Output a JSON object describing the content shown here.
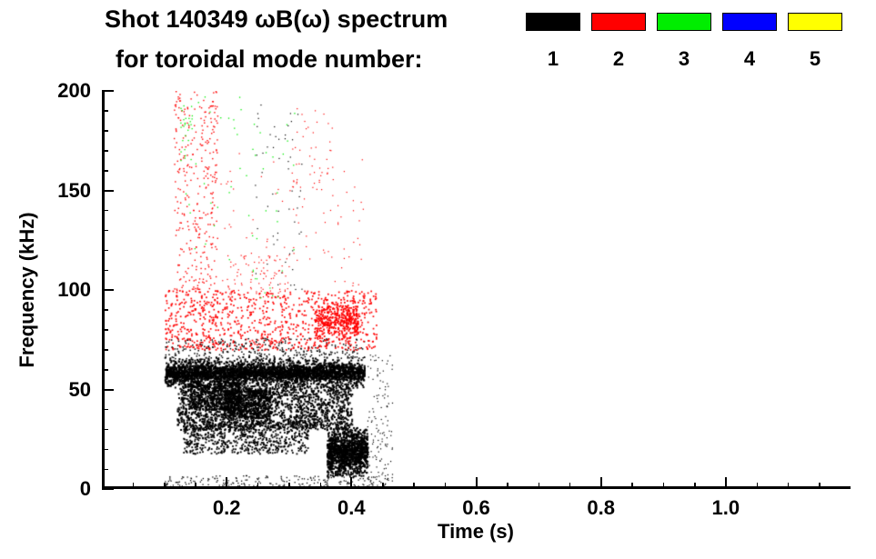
{
  "header": {
    "line1": "Shot 140349 ωB(ω) spectrum",
    "line2": "for toroidal mode number:"
  },
  "chart_data": {
    "type": "scatter",
    "title": "Shot 140349 ωB(ω) spectrum for toroidal mode number",
    "xlabel": "Time (s)",
    "ylabel": "Frequency (kHz)",
    "xlim": [
      0,
      1.2
    ],
    "ylim": [
      0,
      200
    ],
    "x_ticks": [
      {
        "v": 0.2,
        "label": "0.2"
      },
      {
        "v": 0.4,
        "label": "0.4"
      },
      {
        "v": 0.6,
        "label": "0.6"
      },
      {
        "v": 0.8,
        "label": "0.8"
      },
      {
        "v": 1.0,
        "label": "1.0"
      }
    ],
    "y_ticks": [
      {
        "v": 0,
        "label": "0"
      },
      {
        "v": 50,
        "label": "50"
      },
      {
        "v": 100,
        "label": "100"
      },
      {
        "v": 150,
        "label": "150"
      },
      {
        "v": 200,
        "label": "200"
      }
    ],
    "x_minor_step": 0.05,
    "y_minor_step": 10,
    "grid": false,
    "legend": {
      "position": "top-right",
      "entries": [
        {
          "label": "1",
          "color": "#000000"
        },
        {
          "label": "2",
          "color": "#ff0000"
        },
        {
          "label": "3",
          "color": "#00ee00"
        },
        {
          "label": "4",
          "color": "#0000ff"
        },
        {
          "label": "5",
          "color": "#ffff00"
        }
      ]
    },
    "series": [
      {
        "name": "toroidal mode n=1",
        "legend_label": "1",
        "color": "#000000",
        "clusters": [
          {
            "t": [
              0.1,
              0.42
            ],
            "f": [
              50,
              67
            ],
            "n": 2200,
            "size": 2,
            "gauss": true
          },
          {
            "t": [
              0.1,
              0.42
            ],
            "f": [
              55,
              63
            ],
            "n": 1200,
            "size": 2,
            "gauss": true
          },
          {
            "t": [
              0.12,
              0.4
            ],
            "f": [
              30,
              52
            ],
            "n": 1500,
            "size": 2
          },
          {
            "t": [
              0.13,
              0.33
            ],
            "f": [
              18,
              35
            ],
            "n": 700,
            "size": 1.8
          },
          {
            "t": [
              0.36,
              0.425
            ],
            "f": [
              6,
              32
            ],
            "n": 1300,
            "size": 2,
            "gauss": true
          },
          {
            "t": [
              0.1,
              0.46
            ],
            "f": [
              0,
              7
            ],
            "n": 260,
            "size": 1.3
          },
          {
            "t": [
              0.24,
              0.32
            ],
            "f": [
              100,
              195
            ],
            "n": 55,
            "size": 1.2
          },
          {
            "t": [
              0.1,
              0.42
            ],
            "f": [
              65,
              76
            ],
            "n": 320,
            "size": 1.5
          },
          {
            "t": [
              0.425,
              0.465
            ],
            "f": [
              0,
              68
            ],
            "n": 130,
            "size": 1.2
          },
          {
            "t": [
              0.195,
              0.27
            ],
            "f": [
              36,
              50
            ],
            "n": 600,
            "size": 2
          },
          {
            "t": [
              0.14,
              0.22
            ],
            "f": [
              40,
              55
            ],
            "n": 500,
            "size": 2
          }
        ]
      },
      {
        "name": "toroidal mode n=2",
        "legend_label": "2",
        "color": "#ff0000",
        "clusters": [
          {
            "t": [
              0.1,
              0.44
            ],
            "f": [
              70,
              100
            ],
            "n": 850,
            "size": 1.7
          },
          {
            "t": [
              0.115,
              0.185
            ],
            "f": [
              100,
              200
            ],
            "n": 320,
            "size": 1.4
          },
          {
            "t": [
              0.19,
              0.42
            ],
            "f": [
              100,
              170
            ],
            "n": 90,
            "size": 1.2
          },
          {
            "t": [
              0.34,
              0.41
            ],
            "f": [
              74,
              96
            ],
            "n": 380,
            "size": 1.8,
            "gauss": true
          },
          {
            "t": [
              0.3,
              0.37
            ],
            "f": [
              150,
              192
            ],
            "n": 45,
            "size": 1.2
          },
          {
            "t": [
              0.2,
              0.3
            ],
            "f": [
              96,
              118
            ],
            "n": 80,
            "size": 1.2
          }
        ]
      },
      {
        "name": "toroidal mode n=3",
        "legend_label": "3",
        "color": "#00ee00",
        "clusters": [
          {
            "t": [
              0.12,
              0.31
            ],
            "f": [
              115,
              200
            ],
            "n": 48,
            "size": 1.3
          },
          {
            "t": [
              0.24,
              0.3
            ],
            "f": [
              95,
              112
            ],
            "n": 10,
            "size": 1.2
          },
          {
            "t": [
              0.125,
              0.145
            ],
            "f": [
              165,
              195
            ],
            "n": 25,
            "size": 1.3
          }
        ]
      },
      {
        "name": "toroidal mode n=4",
        "legend_label": "4",
        "color": "#0000ff",
        "clusters": []
      },
      {
        "name": "toroidal mode n=5",
        "legend_label": "5",
        "color": "#ffff00",
        "clusters": []
      }
    ]
  }
}
